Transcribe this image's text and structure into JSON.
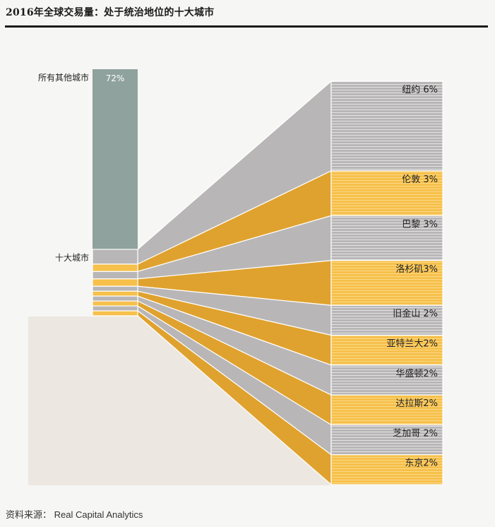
{
  "title": "2016年全球交易量：处于统治地位的十大城市",
  "source": "资料来源：  Real Capital Analytics",
  "colors": {
    "background": "#f6f6f4",
    "panel": "#ece8e1",
    "others_bar": "#8fa29d",
    "gray_city": "#b8b6b7",
    "gray_stripe": "#e4e3e3",
    "orange_city": "#e0a22e",
    "orange_stripe": "#f6c04a",
    "divider": "#ffffff"
  },
  "chart_data": {
    "type": "bar",
    "unit": "%",
    "others": {
      "label": "所有其他城市",
      "value": 72,
      "value_label": "72%"
    },
    "top10": {
      "label": "十大城市"
    },
    "categories": [
      "纽约",
      "伦敦",
      "巴黎",
      "洛杉矶",
      "旧金山",
      "亚特兰大",
      "华盛顿",
      "达拉斯",
      "芝加哥",
      "东京"
    ],
    "values": [
      6,
      3,
      3,
      3,
      2,
      2,
      2,
      2,
      2,
      2
    ],
    "value_labels": [
      "6%",
      "3%",
      "3%",
      "3%",
      "2%",
      "2%",
      "2%",
      "2%",
      "2%",
      "2%"
    ],
    "label_spacer": [
      " ",
      " ",
      " ",
      "",
      " ",
      "",
      "",
      "",
      " ",
      ""
    ],
    "color_groups": [
      "gray",
      "orange",
      "gray",
      "orange",
      "gray",
      "orange",
      "gray",
      "orange",
      "gray",
      "orange"
    ]
  }
}
